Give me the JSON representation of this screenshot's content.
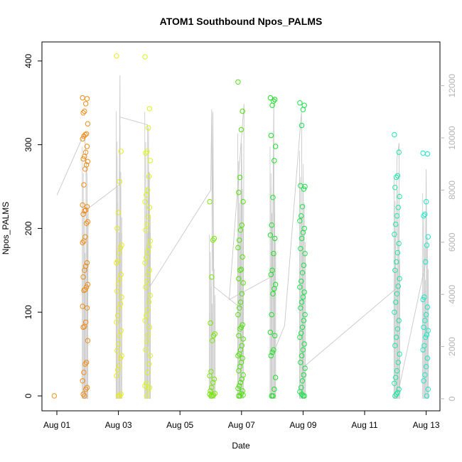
{
  "chart_data": {
    "type": "scatter",
    "title": "ATOM1 Southbound Npos_PALMS",
    "xlabel": "Date",
    "ylabel": "Npos_PALMS",
    "x_ticks": [
      "Aug 01",
      "Aug 03",
      "Aug 05",
      "Aug 07",
      "Aug 09",
      "Aug 11",
      "Aug 13"
    ],
    "y_ticks": [
      "0",
      "100",
      "200",
      "300",
      "400"
    ],
    "y2_ticks": [
      "0",
      "2000",
      "4000",
      "6000",
      "8000",
      "10000",
      "12000"
    ],
    "xlim_days": [
      0.0,
      12.45
    ],
    "ylim": [
      -15,
      420
    ],
    "y2lim": [
      -100,
      12900
    ],
    "grid": false,
    "legend": "none",
    "colors": {
      "aug01": "#f7941d",
      "aug02": "#ef8c18",
      "aug03": "#e8ea1c",
      "aug04": "#dbf51a",
      "aug06": "#79e70b",
      "aug07": "#52e10d",
      "aug08": "#1ae026",
      "aug09": "#19e048",
      "aug12": "#1ae8a1",
      "aug13": "#19e8c5",
      "line": "#c8c8c8"
    },
    "scatter_groups": [
      {
        "x": 0.0,
        "color": "#f7941d",
        "values": [
          0
        ]
      },
      {
        "x": 0.92,
        "color": "#ef8c18",
        "values": [
          356,
          355,
          349,
          340,
          338,
          325,
          313,
          312,
          310,
          307,
          298,
          291,
          286,
          283,
          280,
          276,
          271,
          252,
          228,
          226,
          222,
          221,
          217,
          208,
          206,
          190,
          185,
          183,
          159,
          155,
          150,
          142,
          133,
          130,
          127,
          126,
          107,
          105,
          88,
          83,
          82,
          66,
          40,
          38,
          28,
          18,
          10,
          8,
          0,
          2
        ]
      },
      {
        "x": 2.02,
        "color": "#e8ea1c",
        "values": [
          406,
          292,
          256,
          219,
          200,
          180,
          177,
          171,
          161,
          159,
          145,
          140,
          134,
          125,
          118,
          110,
          105,
          96,
          88,
          78,
          72,
          62,
          54,
          48,
          45,
          36,
          31,
          24,
          2,
          0,
          0
        ]
      },
      {
        "x": 2.95,
        "color": "#dbf51a",
        "values": [
          405,
          343,
          320,
          292,
          290,
          281,
          262,
          246,
          240,
          232,
          225,
          214,
          205,
          198,
          185,
          178,
          172,
          165,
          159,
          150,
          145,
          137,
          130,
          120,
          112,
          103,
          96,
          90,
          82,
          73,
          65,
          55,
          48,
          38,
          28,
          15,
          12,
          10,
          8,
          0
        ]
      },
      {
        "x": 5.05,
        "color": "#79e70b",
        "values": [
          232,
          188,
          186,
          142,
          87,
          74,
          72,
          66,
          29,
          24,
          20,
          16,
          10,
          6,
          3,
          1,
          0,
          0,
          2
        ]
      },
      {
        "x": 5.97,
        "color": "#52e10d",
        "values": [
          375,
          340,
          318,
          261,
          243,
          232,
          204,
          198,
          186,
          177,
          166,
          151,
          150,
          140,
          135,
          122,
          112,
          105,
          97,
          85,
          82,
          80,
          72,
          68,
          60,
          55,
          50,
          48,
          45,
          40,
          35,
          30,
          25,
          20,
          16,
          12,
          9,
          6,
          3,
          0,
          0,
          1
        ]
      },
      {
        "x": 7.02,
        "color": "#1ae026",
        "values": [
          356,
          354,
          352,
          347,
          311,
          298,
          281,
          237,
          204,
          192,
          188,
          170,
          150,
          145,
          133,
          128,
          122,
          97,
          76,
          72,
          55,
          52,
          48,
          22,
          8,
          0,
          0
        ]
      },
      {
        "x": 7.98,
        "color": "#19e048",
        "values": [
          350,
          347,
          342,
          323,
          251,
          250,
          247,
          226,
          215,
          209,
          200,
          195,
          188,
          176,
          170,
          156,
          147,
          137,
          130,
          124,
          118,
          112,
          105,
          97,
          90,
          82,
          75,
          70,
          62,
          55,
          48,
          40,
          33,
          25,
          18,
          10,
          5,
          0,
          0,
          2
        ]
      },
      {
        "x": 11.05,
        "color": "#1ae8a1",
        "values": [
          312,
          291,
          263,
          261,
          249,
          238,
          225,
          215,
          205,
          193,
          182,
          171,
          160,
          150,
          140,
          131,
          122,
          112,
          100,
          90,
          80,
          70,
          60,
          50,
          40,
          30,
          22,
          15,
          8,
          4,
          2,
          0
        ]
      },
      {
        "x": 11.98,
        "color": "#19e8c5",
        "values": [
          290,
          289,
          232,
          217,
          215,
          190,
          180,
          160,
          118,
          115,
          106,
          97,
          90,
          82,
          78,
          73,
          70,
          60,
          55,
          45,
          35,
          25,
          18,
          8,
          0
        ]
      }
    ]
  }
}
